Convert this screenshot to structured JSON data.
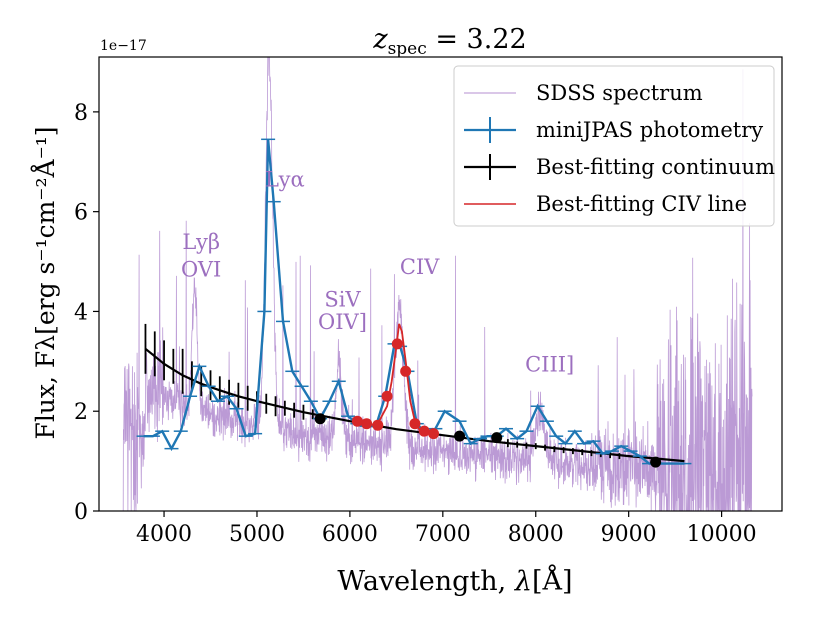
{
  "chart_data": {
    "type": "line",
    "title": "z_spec = 3.22",
    "title_var": "z",
    "title_sub": "spec",
    "title_eq": " = 3.22",
    "xlabel": "Wavelength, λ[Å]",
    "xlabel_prefix": "Wavelength, ",
    "xlabel_var": "λ",
    "xlabel_suffix": "[Å]",
    "ylabel": "Flux, Fλ[erg s⁻¹cm⁻²Å⁻¹]",
    "y_offset_label": "1e−17",
    "xlim": [
      3300,
      10650
    ],
    "ylim": [
      0,
      9.1
    ],
    "xticks": [
      4000,
      5000,
      6000,
      7000,
      8000,
      9000,
      10000
    ],
    "yticks": [
      0,
      2,
      4,
      6,
      8
    ],
    "grid": false,
    "legend_position": "top-right",
    "legend": [
      {
        "label": "SDSS spectrum",
        "color": "#b48fd0"
      },
      {
        "label": "miniJPAS photometry",
        "color": "#1f77b4"
      },
      {
        "label": "Best-fitting continuum",
        "color": "#000000"
      },
      {
        "label": "Best-fitting CIV line",
        "color": "#d62728"
      }
    ],
    "annotations": [
      {
        "text": "Lyα",
        "x": 5300,
        "y": 6.5
      },
      {
        "text": "Lyβ",
        "x": 4400,
        "y": 5.25
      },
      {
        "text": "OVI",
        "x": 4400,
        "y": 4.7
      },
      {
        "text": "SiV",
        "x": 5920,
        "y": 4.1
      },
      {
        "text": "OIV]",
        "x": 5920,
        "y": 3.65
      },
      {
        "text": "CIV",
        "x": 6750,
        "y": 4.75
      },
      {
        "text": "CIII]",
        "x": 8150,
        "y": 2.8
      }
    ],
    "sdss_emission_lines": [
      {
        "center": 4330,
        "amp": 2.5,
        "width": 30
      },
      {
        "center": 5130,
        "amp": 7.5,
        "width": 38
      },
      {
        "center": 5880,
        "amp": 1.5,
        "width": 30
      },
      {
        "center": 6530,
        "amp": 2.8,
        "width": 45
      },
      {
        "center": 8050,
        "amp": 1.0,
        "width": 50
      }
    ],
    "series": [
      {
        "name": "miniJPAS photometry",
        "color": "#1f77b4",
        "x": [
          3780,
          3880,
          3980,
          4080,
          4180,
          4280,
          4380,
          4480,
          4580,
          4680,
          4780,
          4880,
          4980,
          5080,
          5120,
          5180,
          5280,
          5380,
          5480,
          5580,
          5680,
          5780,
          5880,
          5980,
          6080,
          6180,
          6280,
          6380,
          6480,
          6540,
          6620,
          6720,
          6820,
          6920,
          7020,
          7180,
          7300,
          7400,
          7480,
          7580,
          7680,
          7800,
          7900,
          8020,
          8120,
          8220,
          8320,
          8420,
          8520,
          8620,
          8720,
          8820,
          8920,
          9020,
          9120,
          9220,
          9320,
          9600
        ],
        "y": [
          1.5,
          1.5,
          1.6,
          1.25,
          1.6,
          2.3,
          2.9,
          2.5,
          2.2,
          2.3,
          2.05,
          1.5,
          1.55,
          4.0,
          7.45,
          6.2,
          3.8,
          2.8,
          2.5,
          2.2,
          1.85,
          2.2,
          2.6,
          1.9,
          1.75,
          1.7,
          1.7,
          2.3,
          3.35,
          3.3,
          2.8,
          1.75,
          1.55,
          1.65,
          2.0,
          1.8,
          1.35,
          1.45,
          1.5,
          1.5,
          1.65,
          1.45,
          1.6,
          2.1,
          1.8,
          1.5,
          1.35,
          1.6,
          1.35,
          1.4,
          1.15,
          1.2,
          1.3,
          1.2,
          1.1,
          0.95,
          0.95,
          0.95
        ]
      },
      {
        "name": "Best-fitting CIV line",
        "color": "#d62728",
        "x": [
          6100,
          6200,
          6300,
          6400,
          6450,
          6500,
          6530,
          6560,
          6600,
          6650,
          6700,
          6750,
          6800,
          6900
        ],
        "y": [
          1.78,
          1.72,
          1.75,
          2.1,
          2.6,
          3.3,
          3.75,
          3.6,
          3.0,
          2.2,
          1.8,
          1.62,
          1.58,
          1.55
        ]
      }
    ],
    "continuum": {
      "name": "Best-fitting continuum",
      "color": "#000000",
      "x": [
        3800,
        3900,
        4000,
        4200,
        4400,
        4600,
        4800,
        5000,
        5500,
        6000,
        6500,
        7000,
        7500,
        8000,
        8500,
        9000,
        9600
      ],
      "y": [
        3.25,
        3.1,
        2.95,
        2.72,
        2.55,
        2.42,
        2.3,
        2.2,
        1.98,
        1.8,
        1.64,
        1.52,
        1.4,
        1.3,
        1.2,
        1.1,
        1.0
      ],
      "errorbars": [
        {
          "x": 3800,
          "y": 3.25,
          "err": 0.5
        },
        {
          "x": 3900,
          "y": 3.15,
          "err": 0.45
        },
        {
          "x": 4000,
          "y": 3.02,
          "err": 0.4
        },
        {
          "x": 4100,
          "y": 2.9,
          "err": 0.35
        },
        {
          "x": 4200,
          "y": 2.8,
          "err": 0.45
        },
        {
          "x": 4300,
          "y": 2.7,
          "err": 0.3
        },
        {
          "x": 4400,
          "y": 2.6,
          "err": 0.3
        },
        {
          "x": 4500,
          "y": 2.52,
          "err": 0.3
        },
        {
          "x": 4600,
          "y": 2.45,
          "err": 0.25
        },
        {
          "x": 4700,
          "y": 2.38,
          "err": 0.25
        },
        {
          "x": 4800,
          "y": 2.32,
          "err": 0.25
        },
        {
          "x": 4900,
          "y": 2.26,
          "err": 0.25
        },
        {
          "x": 5000,
          "y": 2.2,
          "err": 0.2
        },
        {
          "x": 5100,
          "y": 2.15,
          "err": 0.2
        },
        {
          "x": 5200,
          "y": 2.1,
          "err": 0.2
        },
        {
          "x": 5300,
          "y": 2.06,
          "err": 0.15
        },
        {
          "x": 5400,
          "y": 2.02,
          "err": 0.15
        },
        {
          "x": 5500,
          "y": 1.98,
          "err": 0.15
        },
        {
          "x": 5600,
          "y": 1.94,
          "err": 0.1
        },
        {
          "x": 7700,
          "y": 1.36,
          "err": 0.08
        },
        {
          "x": 7800,
          "y": 1.33,
          "err": 0.06
        },
        {
          "x": 7900,
          "y": 1.31,
          "err": 0.06
        },
        {
          "x": 8000,
          "y": 1.3,
          "err": 0.06
        },
        {
          "x": 8100,
          "y": 1.27,
          "err": 0.06
        },
        {
          "x": 8200,
          "y": 1.24,
          "err": 0.06
        },
        {
          "x": 8300,
          "y": 1.22,
          "err": 0.06
        },
        {
          "x": 8400,
          "y": 1.2,
          "err": 0.06
        },
        {
          "x": 8500,
          "y": 1.18,
          "err": 0.06
        },
        {
          "x": 8600,
          "y": 1.16,
          "err": 0.06
        },
        {
          "x": 8700,
          "y": 1.14,
          "err": 0.06
        },
        {
          "x": 8800,
          "y": 1.12,
          "err": 0.06
        },
        {
          "x": 8900,
          "y": 1.1,
          "err": 0.06
        }
      ]
    },
    "continuum_points": [
      {
        "x": 5680,
        "y": 1.85
      },
      {
        "x": 7180,
        "y": 1.5
      },
      {
        "x": 7580,
        "y": 1.47
      },
      {
        "x": 9290,
        "y": 0.98
      }
    ],
    "civ_points": [
      {
        "x": 6080,
        "y": 1.8
      },
      {
        "x": 6180,
        "y": 1.75
      },
      {
        "x": 6300,
        "y": 1.72
      },
      {
        "x": 6400,
        "y": 2.3
      },
      {
        "x": 6510,
        "y": 3.35
      },
      {
        "x": 6600,
        "y": 2.8
      },
      {
        "x": 6700,
        "y": 1.75
      },
      {
        "x": 6800,
        "y": 1.6
      },
      {
        "x": 6900,
        "y": 1.55
      }
    ]
  }
}
